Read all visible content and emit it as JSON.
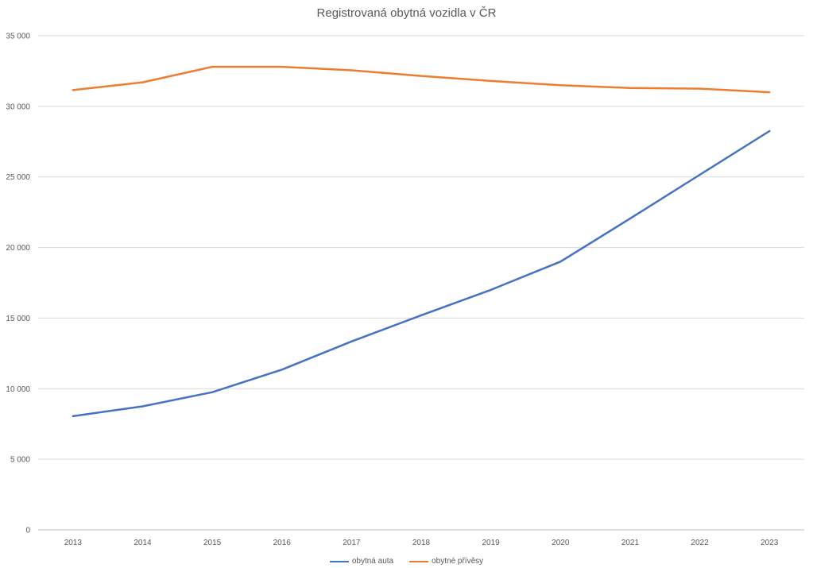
{
  "chart_data": {
    "type": "line",
    "title": "Registrovaná obytná vozidla v ČR",
    "xlabel": "",
    "ylabel": "",
    "categories": [
      "2013",
      "2014",
      "2015",
      "2016",
      "2017",
      "2018",
      "2019",
      "2020",
      "2021",
      "2022",
      "2023"
    ],
    "ylim": [
      0,
      35000
    ],
    "yticks": [
      0,
      5000,
      10000,
      15000,
      20000,
      25000,
      30000,
      35000
    ],
    "ytick_labels": [
      "0",
      "5 000",
      "10 000",
      "15 000",
      "20 000",
      "25 000",
      "30 000",
      "35 000"
    ],
    "grid": true,
    "legend_position": "bottom",
    "series": [
      {
        "name": "obytná auta",
        "color": "#4472C4",
        "values": [
          8050,
          8750,
          9750,
          11350,
          13350,
          15200,
          17000,
          19000,
          22050,
          25150,
          28250
        ]
      },
      {
        "name": "obytné přívěsy",
        "color": "#ED7D31",
        "values": [
          31150,
          31700,
          32800,
          32800,
          32550,
          32150,
          31800,
          31500,
          31300,
          31250,
          31000
        ]
      }
    ]
  }
}
